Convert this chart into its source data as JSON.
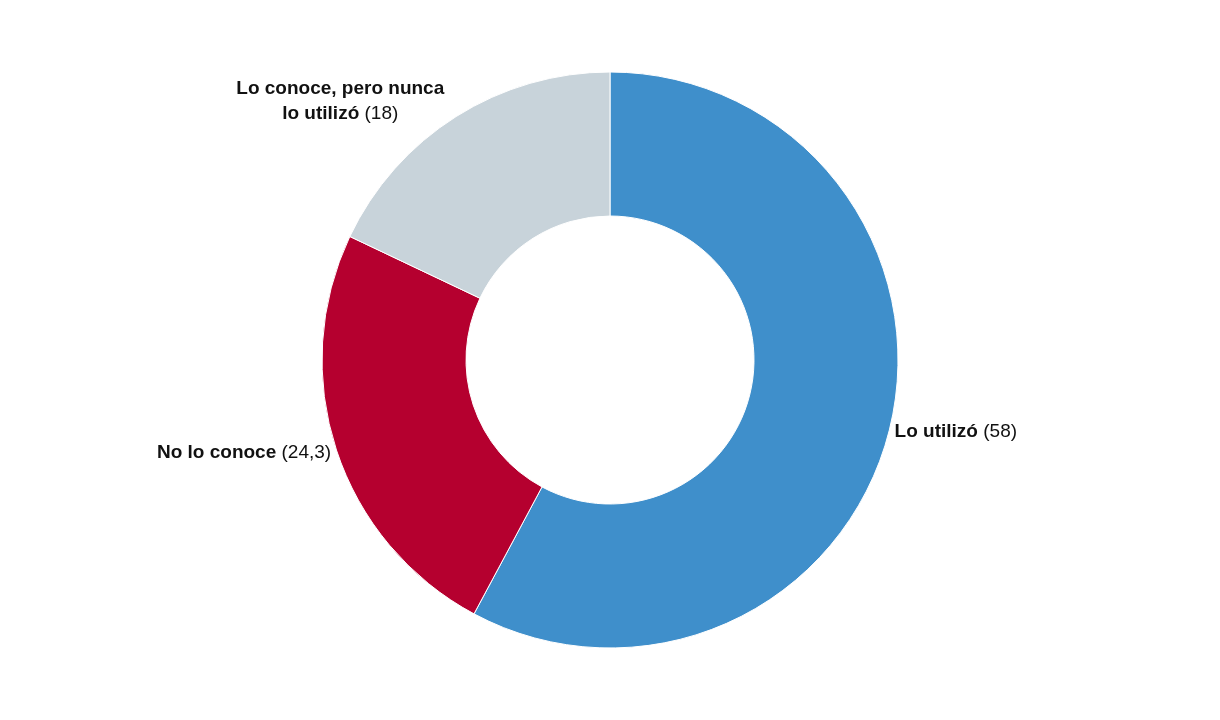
{
  "chart_data": {
    "type": "donut",
    "categories": [
      "Lo utilizó",
      "No lo conoce",
      "Lo conoce, pero nunca lo utilizó"
    ],
    "values": [
      58,
      24.3,
      18
    ],
    "value_labels": [
      "(58)",
      "(24,3)",
      "(18)"
    ],
    "colors": [
      "#3f8fcb",
      "#b5002f",
      "#c8d3da"
    ]
  }
}
